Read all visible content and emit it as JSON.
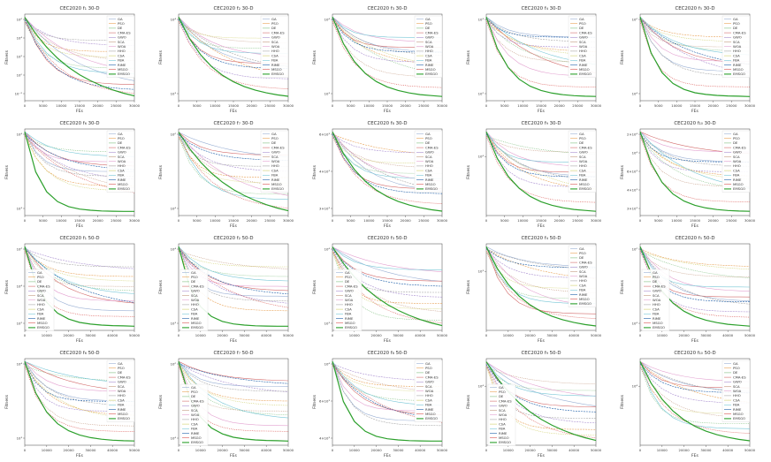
{
  "algorithms": [
    "GA",
    "PSO",
    "DE",
    "CMA-ES",
    "GWO",
    "SCA",
    "WOA",
    "HHO",
    "CSA",
    "FBA",
    "RIME",
    "MSGO",
    "EMSGO"
  ],
  "colors": [
    "#9ab0d4",
    "#e8a257",
    "#7fbf7f",
    "#d36b6b",
    "#a98ed0",
    "#c49a82",
    "#e3a1d0",
    "#a8a8a8",
    "#cfcf6a",
    "#76c6d6",
    "#1f5fa8",
    "#d9534f",
    "#2ca02c"
  ],
  "labels": {
    "xlabel": "FEs",
    "ylabel": "Fitness"
  },
  "chart_data": [
    {
      "type": "line",
      "title": "CEC2020 f₁ 30-D",
      "xlim": [
        0,
        30000
      ],
      "xticks": [
        "0",
        "5000",
        "10000",
        "15000",
        "20000",
        "25000",
        "30000"
      ],
      "yscale": "log",
      "yticks": [
        "10⁶",
        "10⁴",
        "10²",
        "10⁰",
        "10⁻²"
      ],
      "legend": "top-right",
      "series": []
    },
    {
      "type": "line",
      "title": "CEC2020 f₂ 30-D",
      "xlim": [
        0,
        30000
      ],
      "xticks": [
        "0",
        "5000",
        "10000",
        "15000",
        "20000",
        "25000",
        "30000"
      ],
      "yscale": "log",
      "yticks": [
        "10⁴",
        "10³"
      ],
      "legend": "top-right",
      "series": []
    },
    {
      "type": "line",
      "title": "CEC2020 f₃ 30-D",
      "xlim": [
        0,
        30000
      ],
      "xticks": [
        "0",
        "5000",
        "10000",
        "15000",
        "20000",
        "25000",
        "30000"
      ],
      "yscale": "log",
      "yticks": [
        "10⁴",
        "10³"
      ],
      "legend": "top-right",
      "series": []
    },
    {
      "type": "line",
      "title": "CEC2020 f₄ 30-D",
      "xlim": [
        0,
        30000
      ],
      "xticks": [
        "0",
        "5000",
        "10000",
        "15000",
        "20000",
        "25000",
        "30000"
      ],
      "yscale": "log",
      "yticks": [
        "10³",
        "10²"
      ],
      "legend": "top-right",
      "series": []
    },
    {
      "type": "line",
      "title": "CEC2020 f₅ 30-D",
      "xlim": [
        0,
        30000
      ],
      "xticks": [
        "0",
        "5000",
        "10000",
        "15000",
        "20000",
        "25000",
        "30000"
      ],
      "yscale": "log",
      "yticks": [
        "10⁶",
        "10⁴"
      ],
      "legend": "top-right",
      "series": []
    },
    {
      "type": "line",
      "title": "CEC2020 f₆ 30-D",
      "xlim": [
        0,
        30000
      ],
      "xticks": [
        "0",
        "5000",
        "10000",
        "15000",
        "20000",
        "25000",
        "30000"
      ],
      "yscale": "log",
      "yticks": [
        "10⁴",
        "10³"
      ],
      "legend": "top-right",
      "series": []
    },
    {
      "type": "line",
      "title": "CEC2020 f₇ 30-D",
      "xlim": [
        0,
        30000
      ],
      "xticks": [
        "0",
        "5000",
        "10000",
        "15000",
        "20000",
        "25000",
        "30000"
      ],
      "yscale": "log",
      "yticks": [
        "10⁶",
        "10⁴"
      ],
      "legend": "top-right",
      "series": []
    },
    {
      "type": "line",
      "title": "CEC2020 f₈ 30-D",
      "xlim": [
        0,
        30000
      ],
      "xticks": [
        "0",
        "5000",
        "10000",
        "15000",
        "20000",
        "25000",
        "30000"
      ],
      "yscale": "log",
      "yticks": [
        "6×10³",
        "4×10³",
        "3×10³"
      ],
      "legend": "top-right",
      "series": []
    },
    {
      "type": "line",
      "title": "CEC2020 f₉ 30-D",
      "xlim": [
        0,
        30000
      ],
      "xticks": [
        "0",
        "5000",
        "10000",
        "15000",
        "20000",
        "25000",
        "30000"
      ],
      "yscale": "log",
      "yticks": [
        "10⁴"
      ],
      "legend": "top-right",
      "series": []
    },
    {
      "type": "line",
      "title": "CEC2020 f₁₀ 30-D",
      "xlim": [
        0,
        30000
      ],
      "xticks": [
        "0",
        "5000",
        "10000",
        "15000",
        "20000",
        "25000",
        "30000"
      ],
      "yscale": "log",
      "yticks": [
        "2×10⁴",
        "10⁴",
        "6×10³",
        "4×10³",
        "3×10³"
      ],
      "legend": "top-right",
      "series": []
    },
    {
      "type": "line",
      "title": "CEC2020 f₁ 50-D",
      "xlim": [
        0,
        50000
      ],
      "xticks": [
        "0",
        "10000",
        "20000",
        "30000",
        "40000",
        "50000"
      ],
      "yscale": "log",
      "yticks": [
        "10⁶",
        "10⁴",
        "10²"
      ],
      "legend": "left",
      "series": []
    },
    {
      "type": "line",
      "title": "CEC2020 f₂ 50-D",
      "xlim": [
        0,
        50000
      ],
      "xticks": [
        "0",
        "10000",
        "20000",
        "30000",
        "40000",
        "50000"
      ],
      "yscale": "log",
      "yticks": [
        "10⁴",
        "10³"
      ],
      "legend": "left",
      "series": []
    },
    {
      "type": "line",
      "title": "CEC2020 f₃ 50-D",
      "xlim": [
        0,
        50000
      ],
      "xticks": [
        "0",
        "10000",
        "20000",
        "30000",
        "40000",
        "50000"
      ],
      "yscale": "log",
      "yticks": [
        "10⁴",
        "10³"
      ],
      "legend": "left",
      "series": []
    },
    {
      "type": "line",
      "title": "CEC2020 f₄ 50-D",
      "xlim": [
        0,
        50000
      ],
      "xticks": [
        "0",
        "10000",
        "20000",
        "30000",
        "40000",
        "50000"
      ],
      "yscale": "log",
      "yticks": [
        "10³"
      ],
      "legend": "top-right",
      "series": []
    },
    {
      "type": "line",
      "title": "CEC2020 f₅ 50-D",
      "xlim": [
        0,
        50000
      ],
      "xticks": [
        "0",
        "10000",
        "20000",
        "30000",
        "40000",
        "50000"
      ],
      "yscale": "log",
      "yticks": [
        "10⁶",
        "10⁴"
      ],
      "legend": "left",
      "series": []
    },
    {
      "type": "line",
      "title": "CEC2020 f₆ 50-D",
      "xlim": [
        0,
        50000
      ],
      "xticks": [
        "0",
        "10000",
        "20000",
        "30000",
        "40000",
        "50000"
      ],
      "yscale": "log",
      "yticks": [
        "10⁴",
        "10³"
      ],
      "legend": "top-right",
      "series": []
    },
    {
      "type": "line",
      "title": "CEC2020 f₇ 50-D",
      "xlim": [
        0,
        50000
      ],
      "xticks": [
        "0",
        "10000",
        "20000",
        "30000",
        "40000",
        "50000"
      ],
      "yscale": "log",
      "yticks": [
        "10⁶",
        "10⁴"
      ],
      "legend": "left",
      "series": []
    },
    {
      "type": "line",
      "title": "CEC2020 f₈ 50-D",
      "xlim": [
        0,
        50000
      ],
      "xticks": [
        "0",
        "10000",
        "20000",
        "30000",
        "40000",
        "50000"
      ],
      "yscale": "log",
      "yticks": [
        "10⁴",
        "6×10³",
        "4×10³"
      ],
      "legend": "top-right",
      "series": []
    },
    {
      "type": "line",
      "title": "CEC2020 f₉ 50-D",
      "xlim": [
        0,
        50000
      ],
      "xticks": [
        "0",
        "10000",
        "20000",
        "30000",
        "40000",
        "50000"
      ],
      "yscale": "log",
      "yticks": [
        "10⁴"
      ],
      "legend": "left",
      "series": []
    },
    {
      "type": "line",
      "title": "CEC2020 f₁₀ 50-D",
      "xlim": [
        0,
        50000
      ],
      "xticks": [
        "0",
        "10000",
        "20000",
        "30000",
        "40000",
        "50000"
      ],
      "yscale": "log",
      "yticks": [
        "10⁴"
      ],
      "legend": "top-right",
      "series": []
    }
  ]
}
